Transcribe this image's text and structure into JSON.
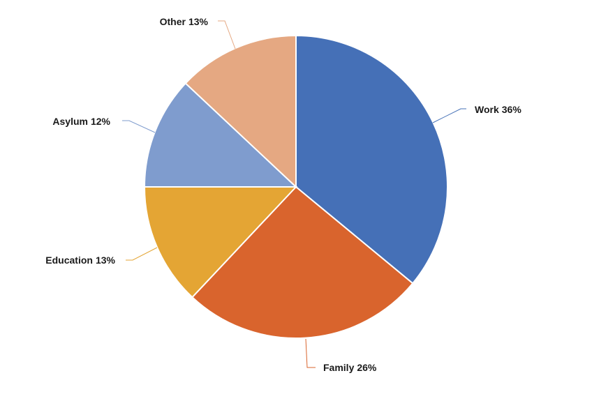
{
  "chart_data": {
    "type": "pie",
    "categories": [
      "Work",
      "Family",
      "Education",
      "Asylum",
      "Other"
    ],
    "values": [
      36,
      26,
      13,
      12,
      13
    ],
    "value_labels": [
      "36%",
      "26%",
      "13%",
      "12%",
      "13%"
    ],
    "colors": [
      "#4570b7",
      "#d9642d",
      "#e4a534",
      "#7f9cce",
      "#e5a882"
    ]
  }
}
